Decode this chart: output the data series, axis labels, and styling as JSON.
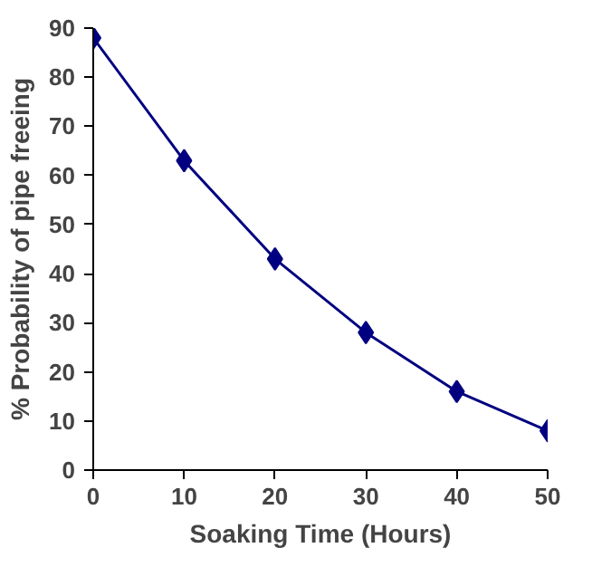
{
  "chart_data": {
    "type": "line",
    "xlabel": "Soaking Time (Hours)",
    "ylabel": "% Probability of pipe freeing",
    "x": [
      0,
      10,
      20,
      30,
      40,
      50
    ],
    "series": [
      {
        "color": "#000080",
        "values": [
          88,
          63,
          43,
          28,
          16,
          8
        ]
      }
    ],
    "xlim": [
      0,
      50
    ],
    "xticks": [
      0,
      10,
      20,
      30,
      40,
      50
    ],
    "ylim": [
      0,
      90
    ],
    "yticks": [
      0,
      10,
      20,
      30,
      40,
      50,
      60,
      70,
      80,
      90
    ],
    "grid": false,
    "marker": "diamond",
    "line_style": "solid"
  }
}
